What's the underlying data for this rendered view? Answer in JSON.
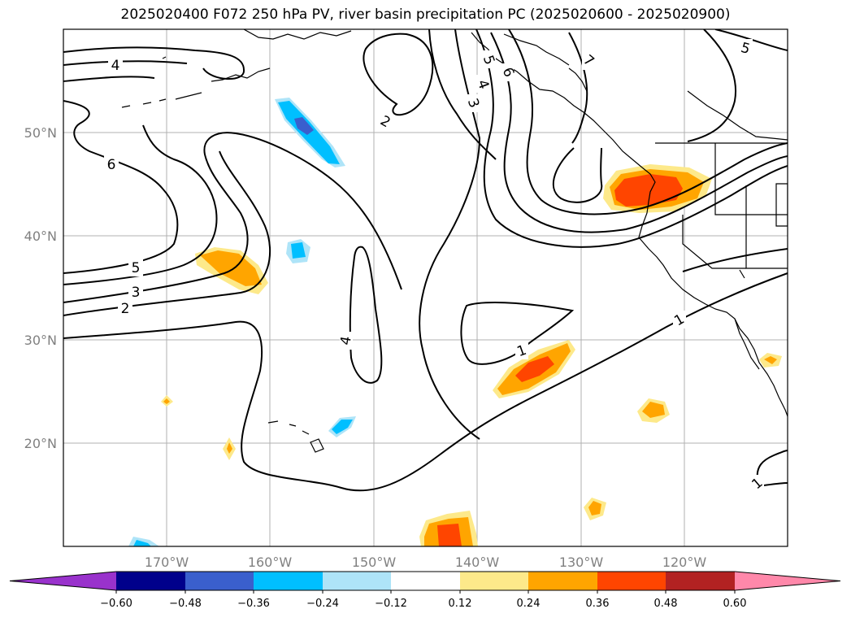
{
  "title": "2025020400 F072 250 hPa PV, river basin precipitation PC (2025020600 - 2025020900)",
  "lat_labels": [
    "50°N",
    "40°N",
    "30°N",
    "20°N"
  ],
  "lon_labels": [
    "170°W",
    "160°W",
    "150°W",
    "140°W",
    "130°W",
    "120°W"
  ],
  "contour_labels": [
    "4",
    "6",
    "5",
    "3",
    "2",
    "2",
    "5",
    "4",
    "3",
    "6",
    "7",
    "4",
    "1",
    "1",
    "5",
    "1"
  ],
  "colorbar": {
    "ticks": [
      "-0.60",
      "-0.48",
      "-0.36",
      "-0.24",
      "-0.12",
      "0.12",
      "0.24",
      "0.36",
      "0.48",
      "0.60"
    ],
    "colors": [
      "#9932cc",
      "#00008b",
      "#3a5fcd",
      "#00bfff",
      "#aee4f8",
      "#ffffff",
      "#fde98a",
      "#ffa500",
      "#ff4500",
      "#b22222",
      "#ff88aa"
    ]
  }
}
